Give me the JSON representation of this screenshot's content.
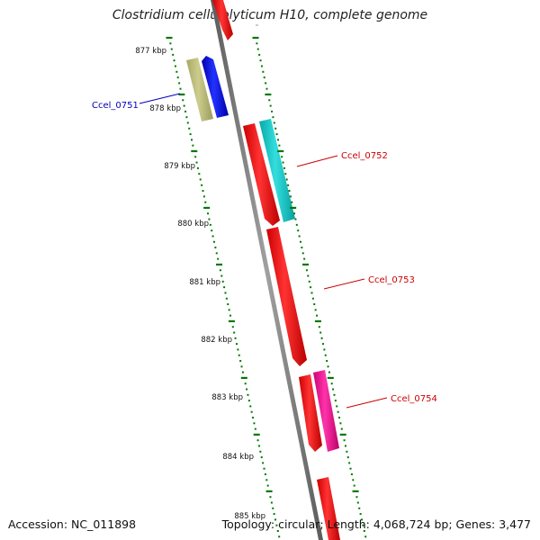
{
  "title": "Clostridium cellulolyticum H10, complete genome",
  "accession": "Accession: NC_011898",
  "summary": "Topology: circular; Length: 4,068,724 bp; Genes: 3,477",
  "ticks": [
    "877 kbp",
    "878 kbp",
    "879 kbp",
    "880 kbp",
    "881 kbp",
    "882 kbp",
    "883 kbp",
    "884 kbp",
    "885 kbp"
  ],
  "gene_labels": [
    {
      "text": "Ccel_0751",
      "color": "#0000bb"
    },
    {
      "text": "Ccel_0752",
      "color": "#cc0000"
    },
    {
      "text": "Ccel_0753",
      "color": "#cc0000"
    },
    {
      "text": "Ccel_0754",
      "color": "#cc0000"
    }
  ],
  "colors": {
    "backbone": "#808080",
    "tick": "#007700",
    "red_gene": "#ee1111",
    "blue_gene": "#0000ee",
    "olive_gene": "#bbbb77",
    "cyan_gene": "#11cccc",
    "magenta_gene": "#ee1199"
  }
}
